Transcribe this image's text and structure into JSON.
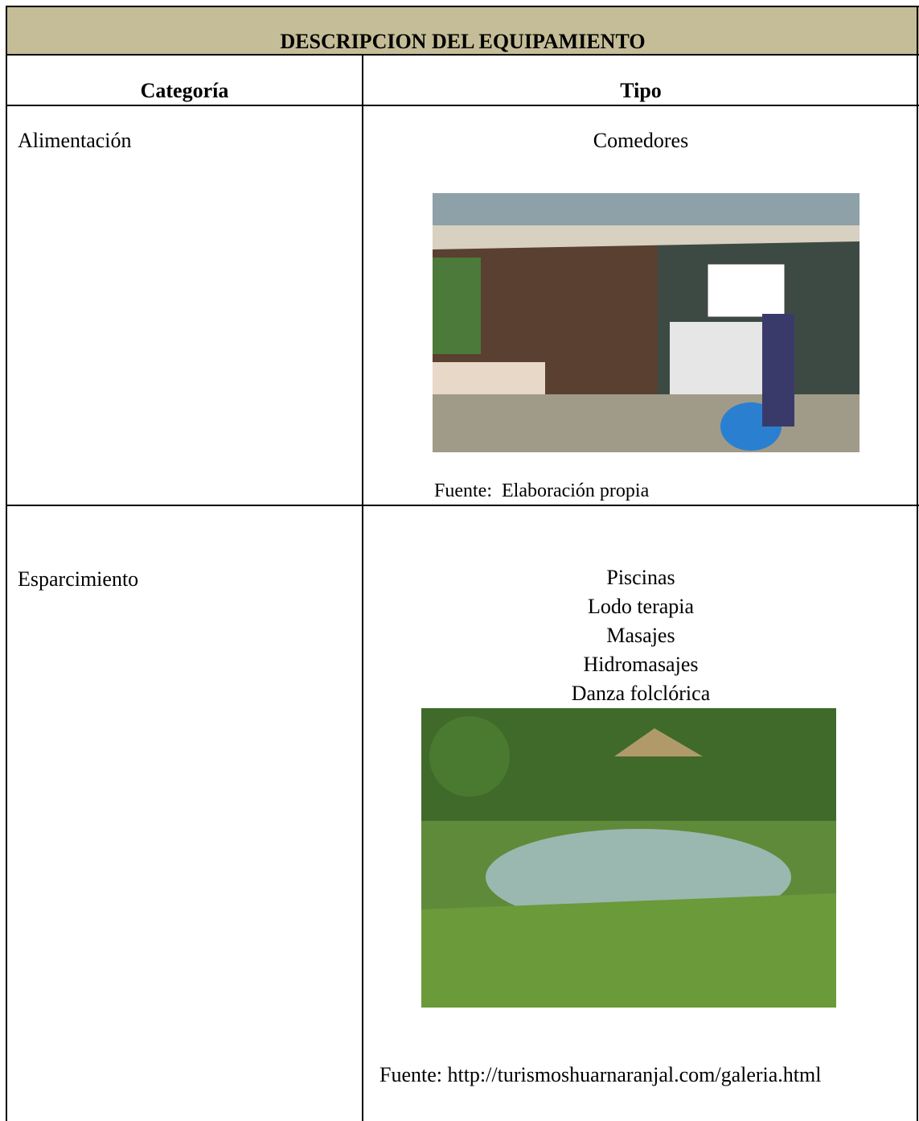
{
  "header": {
    "title": "DESCRIPCION DEL EQUIPAMIENTO"
  },
  "table": {
    "columns": [
      "Categoría",
      "Tipo"
    ],
    "rows": [
      {
        "category": "Alimentación",
        "types": [
          "Comedores"
        ],
        "source": "Fuente:  Elaboración propia"
      },
      {
        "category": "Esparcimiento",
        "types": [
          "Piscinas",
          "Lodo terapia",
          "Masajes",
          "Hidromasajes",
          "Danza folclórica"
        ],
        "source": "Fuente: http://turismoshuarnaranjal.com/galeria.html"
      }
    ]
  }
}
